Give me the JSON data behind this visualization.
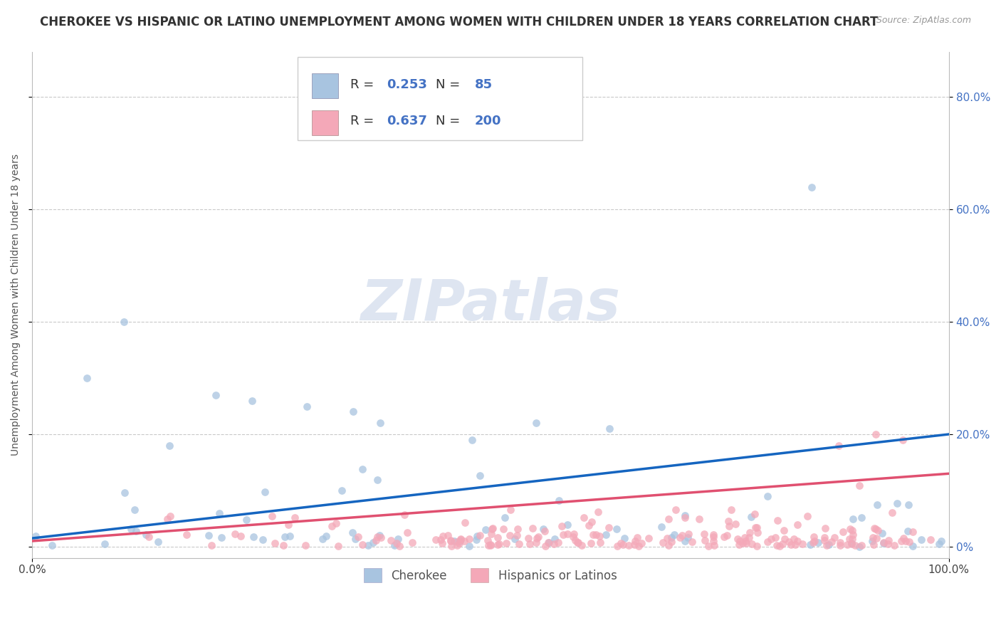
{
  "title": "CHEROKEE VS HISPANIC OR LATINO UNEMPLOYMENT AMONG WOMEN WITH CHILDREN UNDER 18 YEARS CORRELATION CHART",
  "source": "Source: ZipAtlas.com",
  "ylabel": "Unemployment Among Women with Children Under 18 years",
  "xlim": [
    0,
    100
  ],
  "ylim": [
    -2,
    88
  ],
  "cherokee_R": 0.253,
  "cherokee_N": 85,
  "hispanic_R": 0.637,
  "hispanic_N": 200,
  "cherokee_color": "#a8c4e0",
  "cherokee_line_color": "#1565c0",
  "hispanic_color": "#f4a8b8",
  "hispanic_line_color": "#e05070",
  "background_color": "#ffffff",
  "grid_color": "#bbbbbb",
  "watermark_text": "ZIPatlas",
  "watermark_color": "#c8d4e8",
  "legend_label_cherokee": "Cherokee",
  "legend_label_hispanic": "Hispanics or Latinos",
  "title_fontsize": 12,
  "source_fontsize": 9,
  "axis_label_fontsize": 10,
  "tick_fontsize": 11,
  "legend_fontsize": 12,
  "ytick_vals": [
    0,
    20,
    40,
    60,
    80
  ],
  "ytick_labels": [
    "0%",
    "20.0%",
    "40.0%",
    "60.0%",
    "80.0%"
  ],
  "xtick_vals": [
    0,
    100
  ],
  "xtick_labels": [
    "0.0%",
    "100.0%"
  ],
  "cherokee_line_y0": 1.5,
  "cherokee_line_y100": 20.0,
  "hispanic_line_y0": 1.0,
  "hispanic_line_y100": 13.0
}
